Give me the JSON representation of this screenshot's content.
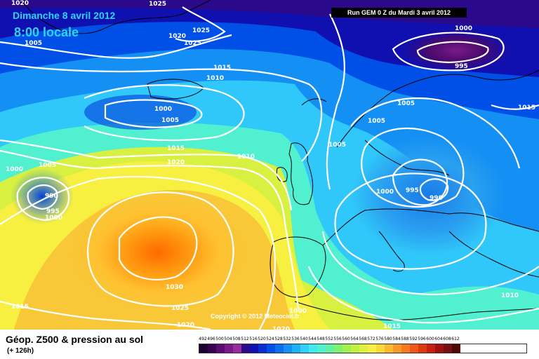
{
  "header": {
    "date": "Dimanche 8 avril 2012",
    "time": "8:00 locale",
    "run": "Run GEM 0 Z du Mardi 3 avril 2012"
  },
  "copyright": "Copyright © 2012 Meteociel.fr",
  "footer": {
    "title": "Géop. Z500 & pression au sol",
    "subtitle": "(+ 126h)"
  },
  "colorscale": {
    "labels": [
      "492",
      "496",
      "500",
      "504",
      "508",
      "512",
      "516",
      "520",
      "524",
      "528",
      "532",
      "536",
      "540",
      "544",
      "548",
      "552",
      "556",
      "560",
      "564",
      "568",
      "572",
      "576",
      "580",
      "584",
      "588",
      "592",
      "596",
      "600",
      "604",
      "608",
      "612"
    ],
    "colors": [
      "#1a0030",
      "#3a0050",
      "#5a0a70",
      "#7a1a8a",
      "#9a2aa0",
      "#2a0a8a",
      "#1010b0",
      "#0830d0",
      "#0050e8",
      "#0a70f0",
      "#1490f4",
      "#20b0f8",
      "#30d0fa",
      "#40e8f0",
      "#50f0d0",
      "#60f0a0",
      "#80f070",
      "#a0f050",
      "#c0f040",
      "#e0f040",
      "#f8f040",
      "#f8d838",
      "#f8b830",
      "#f89828",
      "#f87820",
      "#f05818",
      "#e03810",
      "#c82010",
      "#a01010",
      "#781010",
      "#500808"
    ]
  },
  "isobars": [
    "1025",
    "1005",
    "1025",
    "1020",
    "1025",
    "1015",
    "1010",
    "1000",
    "1005",
    "1000",
    "1005",
    "1015",
    "1020",
    "1010",
    "990",
    "995",
    "1000",
    "1030",
    "1025",
    "1020",
    "1020",
    "1015",
    "1015",
    "1000",
    "995",
    "1005",
    "1005",
    "1000",
    "1005",
    "995",
    "990",
    "1000",
    "1010",
    "1015",
    "1020"
  ]
}
